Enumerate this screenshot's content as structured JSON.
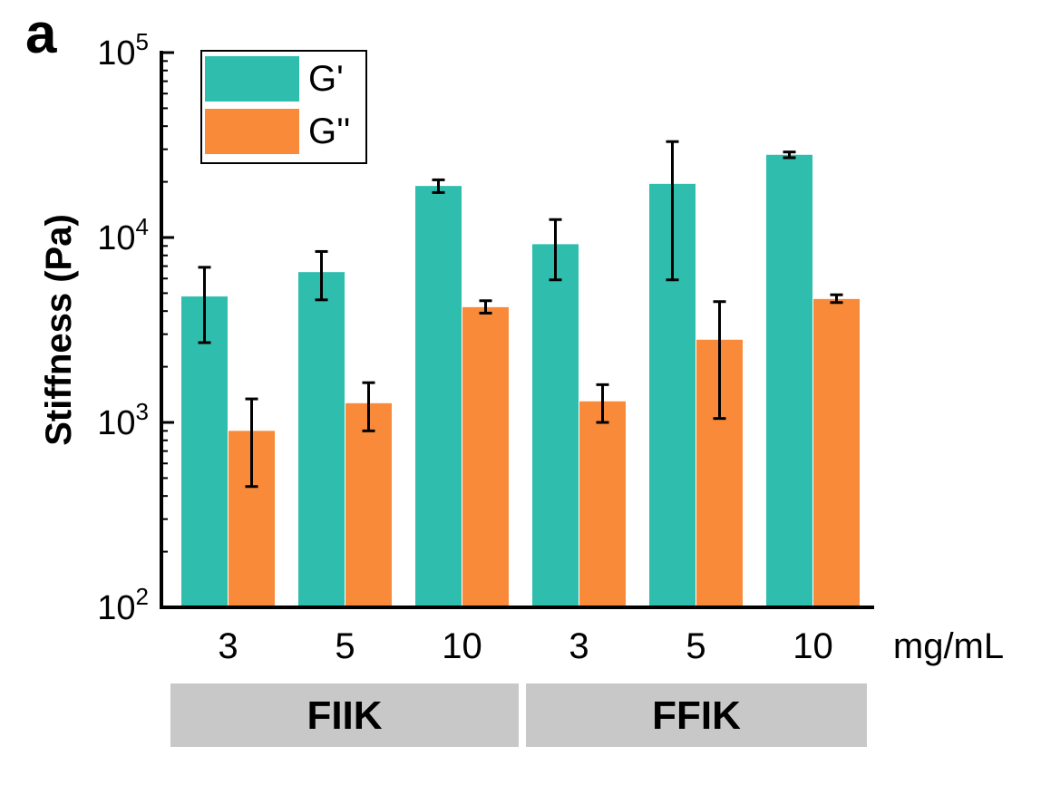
{
  "chart_data": {
    "type": "bar",
    "panel_label": "a",
    "ylabel": "Stiffness (Pa)",
    "yscale": "log",
    "ylim": [
      100,
      100000
    ],
    "ytick_labels": [
      {
        "base": "10",
        "exp": "2",
        "value": 100
      },
      {
        "base": "10",
        "exp": "3",
        "value": 1000
      },
      {
        "base": "10",
        "exp": "4",
        "value": 10000
      },
      {
        "base": "10",
        "exp": "5",
        "value": 100000
      }
    ],
    "categories": [
      "3",
      "5",
      "10",
      "3",
      "5",
      "10"
    ],
    "unit_label": "mg/mL",
    "groups": [
      {
        "label": "FIIK",
        "categories": [
          "3",
          "5",
          "10"
        ]
      },
      {
        "label": "FFIK",
        "categories": [
          "3",
          "5",
          "10"
        ]
      }
    ],
    "series": [
      {
        "name": "G'",
        "color": "#2fbeae",
        "values": [
          4800,
          6500,
          19000,
          9200,
          19500,
          28000
        ],
        "err_low": [
          2700,
          4600,
          17500,
          5900,
          5900,
          27000
        ],
        "err_high": [
          6900,
          8400,
          20500,
          12500,
          33000,
          29000
        ]
      },
      {
        "name": "G''",
        "color": "#f88a3a",
        "values": [
          900,
          1270,
          4200,
          1300,
          2800,
          4650
        ],
        "err_low": [
          450,
          900,
          3900,
          1000,
          1050,
          4450
        ],
        "err_high": [
          1340,
          1640,
          4550,
          1600,
          4500,
          4900
        ]
      }
    ],
    "legend_position": "top-left",
    "grid": false
  }
}
